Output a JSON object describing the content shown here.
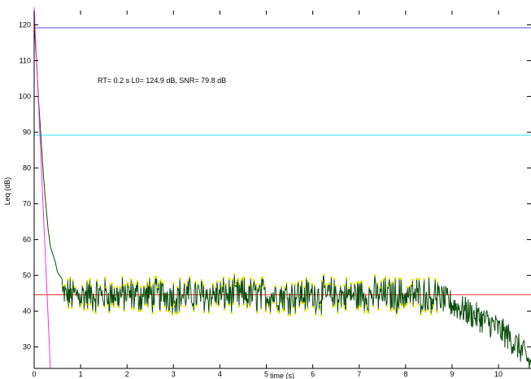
{
  "chart_data": {
    "type": "line",
    "title": "",
    "xlabel": "time (s)",
    "ylabel": "Leq (dB)",
    "xlim": [
      0,
      10.7
    ],
    "ylim": [
      24,
      124
    ],
    "xticks": [
      0,
      1,
      2,
      3,
      4,
      5,
      6,
      7,
      8,
      9,
      10
    ],
    "yticks": [
      30,
      40,
      50,
      60,
      70,
      80,
      90,
      100,
      110,
      120
    ],
    "grid": false,
    "annotation": "RT= 0.2 s  L0= 124.9 dB, SNR= 79.8 dB",
    "horizontal_lines": [
      {
        "y": 119.2,
        "color": "#4b4bff"
      },
      {
        "y": 89.2,
        "color": "#35e6e6"
      },
      {
        "y": 44.6,
        "color": "#ff2a2a"
      }
    ],
    "regression_line": {
      "x": [
        0,
        0.35
      ],
      "y": [
        124.9,
        24
      ],
      "color": "#ff33cc"
    },
    "series": [
      {
        "color": "#0d4d0d",
        "marker_color": "#e6e600",
        "decay_x": [
          0,
          0.05,
          0.1,
          0.15,
          0.2,
          0.25,
          0.3,
          0.35,
          0.4,
          0.45,
          0.5,
          0.55,
          0.6
        ],
        "decay_y": [
          120,
          110,
          98,
          88,
          78,
          70,
          63,
          58,
          56,
          54,
          51,
          50,
          49
        ],
        "noise_floor": {
          "x_start": 0.6,
          "x_end": 8.7,
          "level": 44.5,
          "spread": 4.5
        },
        "tail_x": [
          8.7,
          9.0,
          9.3,
          9.6,
          9.9,
          10.2,
          10.5,
          10.7
        ],
        "tail_y": [
          44,
          42,
          40,
          38,
          36,
          33,
          29,
          25
        ]
      }
    ]
  }
}
